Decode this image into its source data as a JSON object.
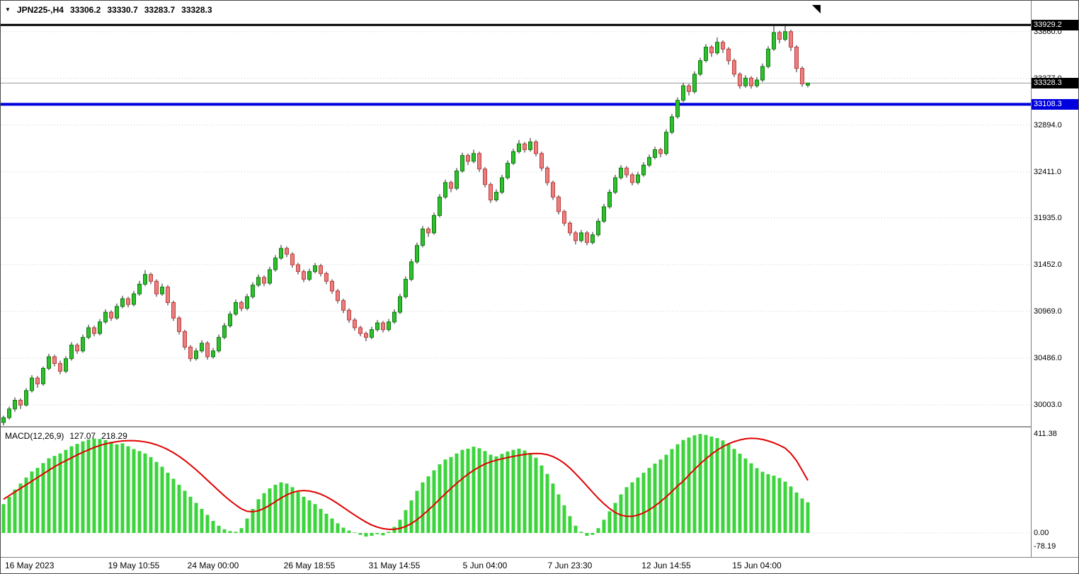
{
  "icons": {
    "dropdown": "▼"
  },
  "colors": {
    "up_fill": "#2FBF2F",
    "up_border": "#0E7A0E",
    "down_fill": "#E88080",
    "down_border": "#C23B3B",
    "wick": "#222222",
    "macd_hist": "#3CD43C",
    "signal_line": "#E10000",
    "grid": "#C9C9C9",
    "blue_line": "#0000DE",
    "badge_black": "#000000"
  },
  "header": {
    "symbol_period": "JPN225-,H4",
    "open": "33306.2",
    "high": "33330.7",
    "low": "33283.7",
    "close": "33328.3"
  },
  "macd_header": {
    "label": "MACD(12,26,9)",
    "macd_value": "127.07",
    "signal_value": "218.29"
  },
  "chart_data": [
    {
      "type": "candlestick",
      "symbol": "JPN225-",
      "timeframe": "H4",
      "ohlc_current": {
        "open": 33306.2,
        "high": 33330.7,
        "low": 33283.7,
        "close": 33328.3
      },
      "ylim": [
        29850,
        33960
      ],
      "price_axis_labels": [
        {
          "text": "33860.0",
          "value": 33860.0
        },
        {
          "text": "33377.0",
          "value": 33377.0
        },
        {
          "text": "32894.0",
          "value": 32894.0
        },
        {
          "text": "32411.0",
          "value": 32411.0
        },
        {
          "text": "31935.0",
          "value": 31935.0
        },
        {
          "text": "31452.0",
          "value": 31452.0
        },
        {
          "text": "30969.0",
          "value": 30969.0
        },
        {
          "text": "30486.0",
          "value": 30486.0
        },
        {
          "text": "30003.0",
          "value": 30003.0
        }
      ],
      "price_badges": [
        {
          "text": "33929.2",
          "value": 33929.2,
          "color": "#000000"
        },
        {
          "text": "33328.3",
          "value": 33328.3,
          "color": "#000000"
        },
        {
          "text": "33108.3",
          "value": 33108.3,
          "color": "#0000DE"
        }
      ],
      "hlines": [
        {
          "value": 33929.2,
          "color": "#000000",
          "width": 3
        },
        {
          "value": 33108.3,
          "color": "#0000DE",
          "width": 4
        },
        {
          "value": 33328.3,
          "color": "#999999",
          "width": 1
        }
      ],
      "x_axis_labels": [
        {
          "text": "16 May 2023",
          "bar": 0
        },
        {
          "text": "19 May 10:55",
          "bar": 23
        },
        {
          "text": "24 May 00:00",
          "bar": 37
        },
        {
          "text": "26 May 18:55",
          "bar": 54
        },
        {
          "text": "31 May 14:55",
          "bar": 69
        },
        {
          "text": "5 Jun 04:00",
          "bar": 85
        },
        {
          "text": "7 Jun 23:30",
          "bar": 100
        },
        {
          "text": "12 Jun 14:55",
          "bar": 117
        },
        {
          "text": "15 Jun 04:00",
          "bar": 133
        }
      ],
      "candles": [
        [
          29820,
          29890,
          29790,
          29870
        ],
        [
          29870,
          29985,
          29850,
          29960
        ],
        [
          29960,
          30080,
          29930,
          30050
        ],
        [
          30050,
          30070,
          29960,
          30000
        ],
        [
          30000,
          30175,
          29985,
          30150
        ],
        [
          30150,
          30310,
          30130,
          30280
        ],
        [
          30280,
          30300,
          30180,
          30220
        ],
        [
          30220,
          30400,
          30200,
          30380
        ],
        [
          30380,
          30530,
          30360,
          30500
        ],
        [
          30500,
          30520,
          30400,
          30430
        ],
        [
          30430,
          30460,
          30320,
          30350
        ],
        [
          30350,
          30505,
          30330,
          30480
        ],
        [
          30480,
          30650,
          30460,
          30620
        ],
        [
          30620,
          30640,
          30530,
          30560
        ],
        [
          30560,
          30730,
          30540,
          30700
        ],
        [
          30700,
          30830,
          30680,
          30800
        ],
        [
          30800,
          30820,
          30710,
          30740
        ],
        [
          30740,
          30890,
          30720,
          30860
        ],
        [
          30860,
          30990,
          30840,
          30960
        ],
        [
          30960,
          30980,
          30870,
          30900
        ],
        [
          30900,
          31050,
          30880,
          31020
        ],
        [
          31020,
          31130,
          31000,
          31100
        ],
        [
          31100,
          31120,
          31010,
          31040
        ],
        [
          31040,
          31180,
          31020,
          31150
        ],
        [
          31150,
          31285,
          31130,
          31250
        ],
        [
          31250,
          31395,
          31230,
          31350
        ],
        [
          31350,
          31370,
          31250,
          31280
        ],
        [
          31280,
          31300,
          31120,
          31150
        ],
        [
          31150,
          31255,
          31130,
          31220
        ],
        [
          31220,
          31240,
          31030,
          31060
        ],
        [
          31060,
          31080,
          30870,
          30900
        ],
        [
          30900,
          30920,
          30730,
          30760
        ],
        [
          30760,
          30780,
          30570,
          30600
        ],
        [
          30600,
          30620,
          30450,
          30480
        ],
        [
          30480,
          30590,
          30460,
          30560
        ],
        [
          30560,
          30670,
          30540,
          30640
        ],
        [
          30640,
          30660,
          30470,
          30500
        ],
        [
          30500,
          30590,
          30480,
          30560
        ],
        [
          30560,
          30730,
          30540,
          30700
        ],
        [
          30700,
          30850,
          30680,
          30820
        ],
        [
          30820,
          30970,
          30800,
          30940
        ],
        [
          30940,
          31090,
          30920,
          31060
        ],
        [
          31060,
          31080,
          30970,
          31000
        ],
        [
          31000,
          31150,
          30980,
          31120
        ],
        [
          31120,
          31270,
          31100,
          31240
        ],
        [
          31240,
          31350,
          31220,
          31320
        ],
        [
          31320,
          31340,
          31230,
          31260
        ],
        [
          31260,
          31430,
          31240,
          31400
        ],
        [
          31400,
          31550,
          31380,
          31520
        ],
        [
          31520,
          31655,
          31500,
          31620
        ],
        [
          31620,
          31640,
          31530,
          31560
        ],
        [
          31560,
          31580,
          31420,
          31450
        ],
        [
          31450,
          31470,
          31350,
          31380
        ],
        [
          31380,
          31400,
          31270,
          31300
        ],
        [
          31300,
          31410,
          31280,
          31380
        ],
        [
          31380,
          31470,
          31360,
          31440
        ],
        [
          31440,
          31460,
          31330,
          31360
        ],
        [
          31360,
          31380,
          31250,
          31280
        ],
        [
          31280,
          31300,
          31150,
          31180
        ],
        [
          31180,
          31200,
          31050,
          31080
        ],
        [
          31080,
          31100,
          30950,
          30980
        ],
        [
          30980,
          31000,
          30850,
          30880
        ],
        [
          30880,
          30900,
          30770,
          30800
        ],
        [
          30800,
          30820,
          30710,
          30740
        ],
        [
          30740,
          30760,
          30660,
          30700
        ],
        [
          30700,
          30810,
          30680,
          30780
        ],
        [
          30780,
          30880,
          30760,
          30850
        ],
        [
          30850,
          30870,
          30750,
          30780
        ],
        [
          30780,
          30890,
          30760,
          30860
        ],
        [
          30860,
          30990,
          30840,
          30960
        ],
        [
          30960,
          31150,
          30940,
          31120
        ],
        [
          31120,
          31330,
          31100,
          31300
        ],
        [
          31300,
          31510,
          31280,
          31480
        ],
        [
          31480,
          31680,
          31460,
          31650
        ],
        [
          31650,
          31850,
          31630,
          31820
        ],
        [
          31820,
          31840,
          31740,
          31780
        ],
        [
          31780,
          31990,
          31760,
          31960
        ],
        [
          31960,
          32180,
          31940,
          32150
        ],
        [
          32150,
          32330,
          32130,
          32300
        ],
        [
          32300,
          32320,
          32200,
          32240
        ],
        [
          32240,
          32450,
          32220,
          32420
        ],
        [
          32420,
          32610,
          32400,
          32580
        ],
        [
          32580,
          32600,
          32480,
          32520
        ],
        [
          32520,
          32640,
          32500,
          32600
        ],
        [
          32600,
          32620,
          32410,
          32440
        ],
        [
          32440,
          32460,
          32250,
          32280
        ],
        [
          32280,
          32300,
          32090,
          32120
        ],
        [
          32120,
          32230,
          32100,
          32200
        ],
        [
          32200,
          32380,
          32180,
          32350
        ],
        [
          32350,
          32530,
          32330,
          32500
        ],
        [
          32500,
          32650,
          32480,
          32620
        ],
        [
          32620,
          32740,
          32600,
          32700
        ],
        [
          32700,
          32720,
          32610,
          32640
        ],
        [
          32640,
          32760,
          32620,
          32720
        ],
        [
          32720,
          32740,
          32570,
          32600
        ],
        [
          32600,
          32620,
          32420,
          32450
        ],
        [
          32450,
          32470,
          32270,
          32300
        ],
        [
          32300,
          32320,
          32120,
          32150
        ],
        [
          32150,
          32170,
          31970,
          32000
        ],
        [
          32000,
          32020,
          31850,
          31880
        ],
        [
          31880,
          31900,
          31750,
          31780
        ],
        [
          31780,
          31800,
          31660,
          31700
        ],
        [
          31700,
          31810,
          31680,
          31780
        ],
        [
          31780,
          31800,
          31650,
          31680
        ],
        [
          31680,
          31790,
          31660,
          31760
        ],
        [
          31760,
          31930,
          31740,
          31900
        ],
        [
          31900,
          32080,
          31880,
          32050
        ],
        [
          32050,
          32230,
          32030,
          32200
        ],
        [
          32200,
          32380,
          32180,
          32350
        ],
        [
          32350,
          32480,
          32330,
          32450
        ],
        [
          32450,
          32470,
          32350,
          32380
        ],
        [
          32380,
          32400,
          32270,
          32300
        ],
        [
          32300,
          32410,
          32280,
          32380
        ],
        [
          32380,
          32510,
          32360,
          32480
        ],
        [
          32480,
          32590,
          32460,
          32560
        ],
        [
          32560,
          32670,
          32540,
          32640
        ],
        [
          32640,
          32660,
          32560,
          32600
        ],
        [
          32600,
          32850,
          32580,
          32820
        ],
        [
          32820,
          33010,
          32800,
          32980
        ],
        [
          32980,
          33180,
          32960,
          33150
        ],
        [
          33150,
          33330,
          33130,
          33300
        ],
        [
          33300,
          33320,
          33200,
          33240
        ],
        [
          33240,
          33450,
          33220,
          33420
        ],
        [
          33420,
          33590,
          33400,
          33560
        ],
        [
          33560,
          33730,
          33540,
          33700
        ],
        [
          33700,
          33720,
          33600,
          33640
        ],
        [
          33640,
          33800,
          33620,
          33750
        ],
        [
          33750,
          33770,
          33640,
          33680
        ],
        [
          33680,
          33700,
          33520,
          33560
        ],
        [
          33560,
          33580,
          33390,
          33420
        ],
        [
          33420,
          33440,
          33270,
          33300
        ],
        [
          33300,
          33410,
          33280,
          33380
        ],
        [
          33380,
          33400,
          33270,
          33300
        ],
        [
          33300,
          33390,
          33280,
          33360
        ],
        [
          33360,
          33530,
          33340,
          33500
        ],
        [
          33500,
          33710,
          33480,
          33680
        ],
        [
          33680,
          33929,
          33660,
          33850
        ],
        [
          33850,
          33870,
          33740,
          33780
        ],
        [
          33780,
          33920,
          33760,
          33860
        ],
        [
          33860,
          33880,
          33660,
          33700
        ],
        [
          33700,
          33720,
          33440,
          33480
        ],
        [
          33480,
          33500,
          33290,
          33320
        ],
        [
          33306.2,
          33330.7,
          33283.7,
          33328.3
        ]
      ]
    },
    {
      "type": "bar",
      "title": "MACD(12,26,9)",
      "current_macd": 127.07,
      "current_signal": 218.29,
      "ylim": [
        -110,
        438
      ],
      "axis_labels": [
        {
          "text": "411.38",
          "value": 411.38
        },
        {
          "text": "0.00",
          "value": 0
        },
        {
          "text": "-78.19",
          "value": -78.19
        }
      ],
      "histogram": [
        120,
        150,
        180,
        205,
        230,
        255,
        270,
        290,
        310,
        320,
        330,
        345,
        360,
        370,
        380,
        388,
        392,
        390,
        385,
        378,
        368,
        372,
        360,
        348,
        340,
        330,
        315,
        295,
        275,
        250,
        225,
        200,
        175,
        150,
        125,
        100,
        75,
        50,
        30,
        15,
        8,
        5,
        20,
        60,
        100,
        140,
        165,
        185,
        200,
        210,
        205,
        190,
        170,
        150,
        135,
        120,
        100,
        80,
        60,
        40,
        22,
        10,
        2,
        -8,
        -15,
        -12,
        -5,
        -10,
        5,
        25,
        55,
        95,
        135,
        175,
        210,
        235,
        260,
        285,
        305,
        315,
        330,
        345,
        350,
        358,
        352,
        340,
        325,
        318,
        328,
        338,
        345,
        350,
        342,
        332,
        312,
        280,
        245,
        205,
        160,
        115,
        70,
        30,
        5,
        -12,
        -8,
        20,
        55,
        90,
        125,
        160,
        190,
        210,
        230,
        250,
        270,
        288,
        305,
        325,
        348,
        368,
        386,
        396,
        405,
        411,
        407,
        400,
        394,
        384,
        369,
        349,
        329,
        309,
        289,
        269,
        254,
        244,
        238,
        228,
        213,
        193,
        168,
        143,
        127.07
      ],
      "signal": [
        140,
        155,
        170,
        185,
        200,
        215,
        230,
        245,
        260,
        275,
        288,
        300,
        312,
        324,
        335,
        345,
        355,
        363,
        370,
        375,
        379,
        382,
        383,
        383,
        381,
        378,
        373,
        366,
        357,
        346,
        333,
        318,
        301,
        282,
        262,
        241,
        219,
        197,
        175,
        154,
        134,
        116,
        100,
        90,
        88,
        92,
        102,
        115,
        130,
        145,
        158,
        168,
        174,
        176,
        174,
        169,
        161,
        150,
        137,
        122,
        106,
        90,
        74,
        59,
        45,
        33,
        24,
        18,
        15,
        15,
        19,
        27,
        39,
        55,
        74,
        95,
        117,
        140,
        163,
        185,
        206,
        226,
        244,
        260,
        274,
        286,
        295,
        302,
        308,
        313,
        318,
        322,
        326,
        329,
        330,
        329,
        325,
        317,
        305,
        289,
        269,
        246,
        221,
        195,
        169,
        144,
        121,
        101,
        85,
        74,
        69,
        69,
        74,
        83,
        96,
        112,
        130,
        150,
        172,
        195,
        215,
        240,
        264,
        287,
        308,
        327,
        344,
        358,
        370,
        379,
        386,
        391,
        393,
        392,
        388,
        382,
        374,
        364,
        352,
        330,
        300,
        260,
        218.29
      ]
    }
  ]
}
